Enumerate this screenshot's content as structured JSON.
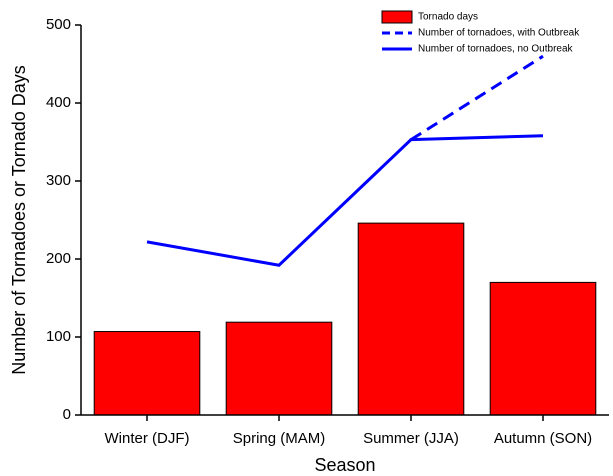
{
  "chart_data": {
    "type": "bar",
    "x_label": "Season",
    "y_label": "Number of Tornadoes or Tornado Days",
    "categories": [
      "Winter (DJF)",
      "Spring (MAM)",
      "Summer (JJA)",
      "Autumn (SON)"
    ],
    "series": [
      {
        "name": "Tornado days",
        "type": "bar",
        "color": "#ff0000",
        "values": [
          107,
          119,
          246,
          170
        ]
      },
      {
        "name": "Number of tornadoes, with Outbreak",
        "type": "line",
        "dashed": true,
        "color": "#0000ff",
        "values": [
          null,
          null,
          353,
          460
        ]
      },
      {
        "name": "Number of tornadoes, no Outbreak",
        "type": "line",
        "dashed": false,
        "color": "#0000ff",
        "values": [
          222,
          192,
          353,
          358
        ]
      }
    ],
    "ylim": [
      0,
      500
    ],
    "yticks": [
      0,
      100,
      200,
      300,
      400,
      500
    ],
    "legend": "upper right",
    "grid": false
  }
}
